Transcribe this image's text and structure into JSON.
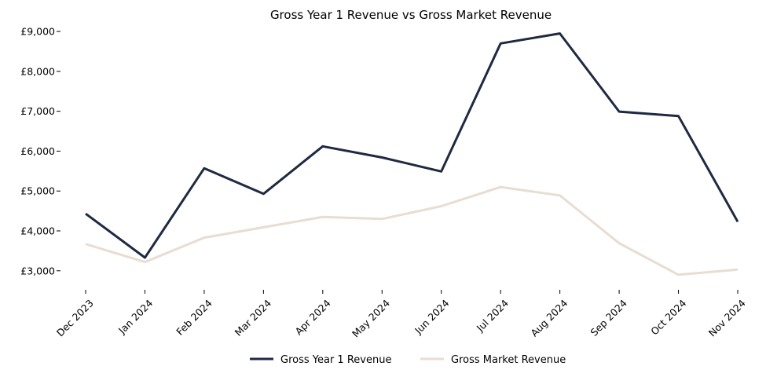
{
  "chart_data": {
    "type": "line",
    "title": "Gross Year 1 Revenue vs Gross Market Revenue",
    "xlabel": "",
    "ylabel": "",
    "categories": [
      "Dec 2023",
      "Jan 2024",
      "Feb 2024",
      "Mar 2024",
      "Apr 2024",
      "May 2024",
      "Jun 2024",
      "Jul 2024",
      "Aug 2024",
      "Sep 2024",
      "Oct 2024",
      "Nov 2024"
    ],
    "ylim": [
      2700,
      9100
    ],
    "yticks": [
      3000,
      4000,
      5000,
      6000,
      7000,
      8000,
      9000
    ],
    "ytick_labels": [
      "£3,000",
      "£4,000",
      "£5,000",
      "£6,000",
      "£7,000",
      "£8,000",
      "£9,000"
    ],
    "grid": false,
    "legend_position": "bottom-center",
    "series": [
      {
        "name": "Gross Year 1 Revenue",
        "color": "#1f2940",
        "values": [
          4430,
          3330,
          5570,
          4930,
          6120,
          5840,
          5490,
          8700,
          8950,
          6990,
          6880,
          4230
        ]
      },
      {
        "name": "Gross Market Revenue",
        "color": "#e7ddd3",
        "values": [
          3670,
          3220,
          3830,
          4090,
          4350,
          4300,
          4620,
          5100,
          4890,
          3690,
          2900,
          3030
        ]
      }
    ]
  }
}
